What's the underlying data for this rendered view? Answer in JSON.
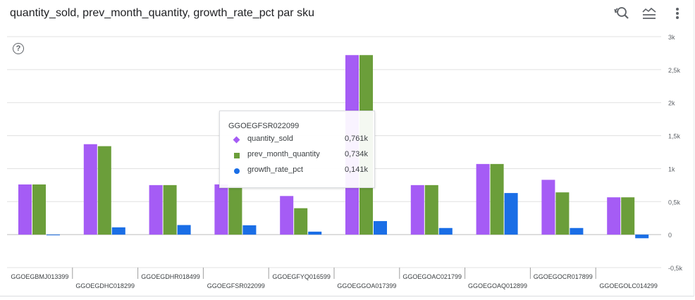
{
  "header": {
    "title": "quantity_sold, prev_month_quantity, growth_rate_pct par sku",
    "toolbar": [
      {
        "name": "reset-zoom-icon"
      },
      {
        "name": "legend-toggle-icon"
      },
      {
        "name": "more-options-icon"
      }
    ],
    "help_icon": "?"
  },
  "colors": {
    "quantity_sold": "#a55cf5",
    "prev_month_quantity": "#6b9e3a",
    "growth_rate_pct": "#1a6ee6"
  },
  "tooltip": {
    "title": "GGOEGFSR022099",
    "rows": [
      {
        "name": "quantity_sold",
        "value": "0,761k",
        "marker": "diamond"
      },
      {
        "name": "prev_month_quantity",
        "value": "0,734k",
        "marker": "square"
      },
      {
        "name": "growth_rate_pct",
        "value": "0,141k",
        "marker": "circle"
      }
    ]
  },
  "chart_data": {
    "type": "bar",
    "categories": [
      "GGOEGBMJ013399",
      "GGOEGDHC018299",
      "GGOEGDHR018499",
      "GGOEGFSR022099",
      "GGOEGFYQ016599",
      "GGOEGGOA017399",
      "GGOEGOAC021799",
      "GGOEGOAQ012899",
      "GGOEGOCR017899",
      "GGOEGOLC014299"
    ],
    "series": [
      {
        "name": "quantity_sold",
        "values": [
          760,
          1370,
          750,
          761,
          585,
          2720,
          750,
          1070,
          830,
          565
        ]
      },
      {
        "name": "prev_month_quantity",
        "values": [
          760,
          1340,
          750,
          734,
          400,
          2720,
          750,
          1070,
          640,
          565
        ]
      },
      {
        "name": "growth_rate_pct",
        "values": [
          -8,
          110,
          145,
          141,
          45,
          205,
          100,
          630,
          100,
          -55
        ]
      }
    ],
    "ylim": [
      -500,
      3000
    ],
    "yticks": [
      -500,
      0,
      500,
      1000,
      1500,
      2000,
      2500,
      3000
    ],
    "ytick_labels": [
      "-0,5k",
      "0",
      "0,5k",
      "1k",
      "1,5k",
      "2k",
      "2,5k",
      "3k"
    ],
    "y_axis_side": "right",
    "grid": true,
    "legend": "none"
  }
}
